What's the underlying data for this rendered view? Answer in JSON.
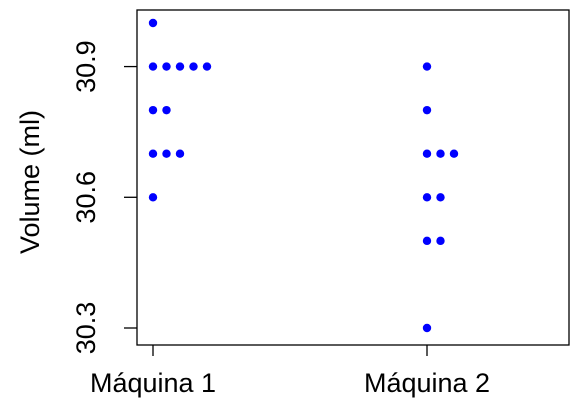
{
  "chart_data": {
    "type": "scatter",
    "title": "",
    "xlabel": "",
    "ylabel": "Volume (ml)",
    "categories": [
      "Máquina 1",
      "Máquina 2"
    ],
    "y_ticks": [
      "30.3",
      "30.6",
      "30.9"
    ],
    "ylim": [
      30.28,
      31.0
    ],
    "grid": false,
    "point_color": "#0000ff",
    "series": [
      {
        "category": "Máquina 1",
        "points": [
          {
            "y": 31.0,
            "count": 1
          },
          {
            "y": 30.9,
            "count": 5
          },
          {
            "y": 30.8,
            "count": 2
          },
          {
            "y": 30.7,
            "count": 3
          },
          {
            "y": 30.6,
            "count": 1
          }
        ]
      },
      {
        "category": "Máquina 2",
        "points": [
          {
            "y": 30.9,
            "count": 1
          },
          {
            "y": 30.8,
            "count": 1
          },
          {
            "y": 30.7,
            "count": 3
          },
          {
            "y": 30.6,
            "count": 2
          },
          {
            "y": 30.5,
            "count": 2
          },
          {
            "y": 30.3,
            "count": 1
          }
        ]
      }
    ]
  }
}
